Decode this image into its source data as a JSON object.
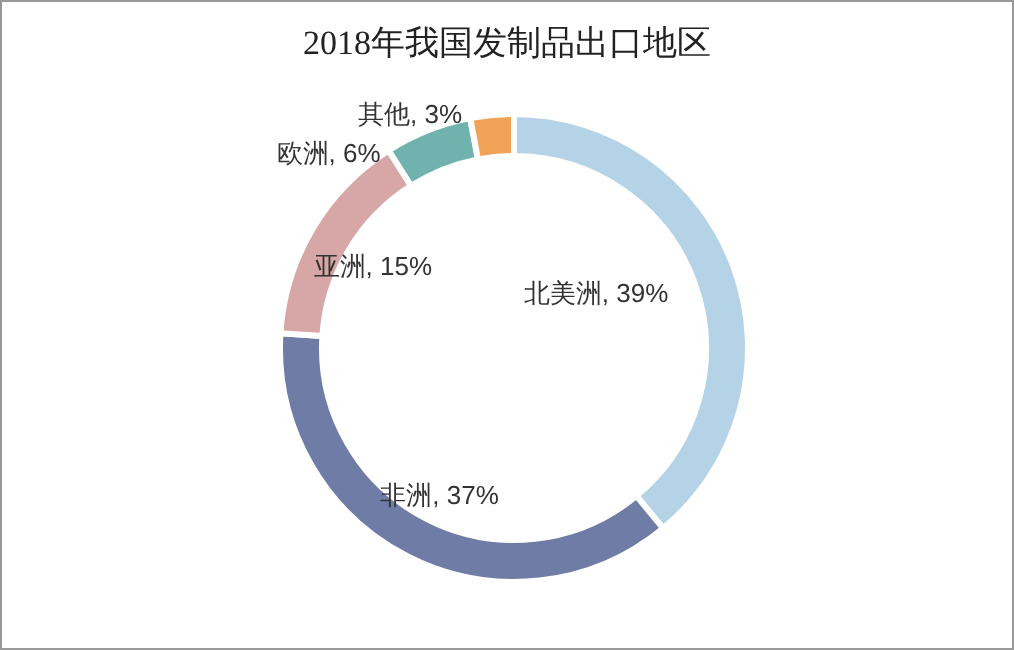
{
  "chart_data": {
    "type": "donut",
    "title": "2018年我国发制品出口地区",
    "categories": [
      "北美洲",
      "非洲",
      "亚洲",
      "欧洲",
      "其他"
    ],
    "values": [
      39,
      37,
      15,
      6,
      3
    ],
    "colors": [
      "#b5d3e7",
      "#6f7ca5",
      "#d6a7a6",
      "#70b2ad",
      "#f0a257"
    ],
    "value_labels": [
      ", 39%",
      ", 37%",
      ", 15%",
      ", 6%",
      ", 3%"
    ]
  }
}
